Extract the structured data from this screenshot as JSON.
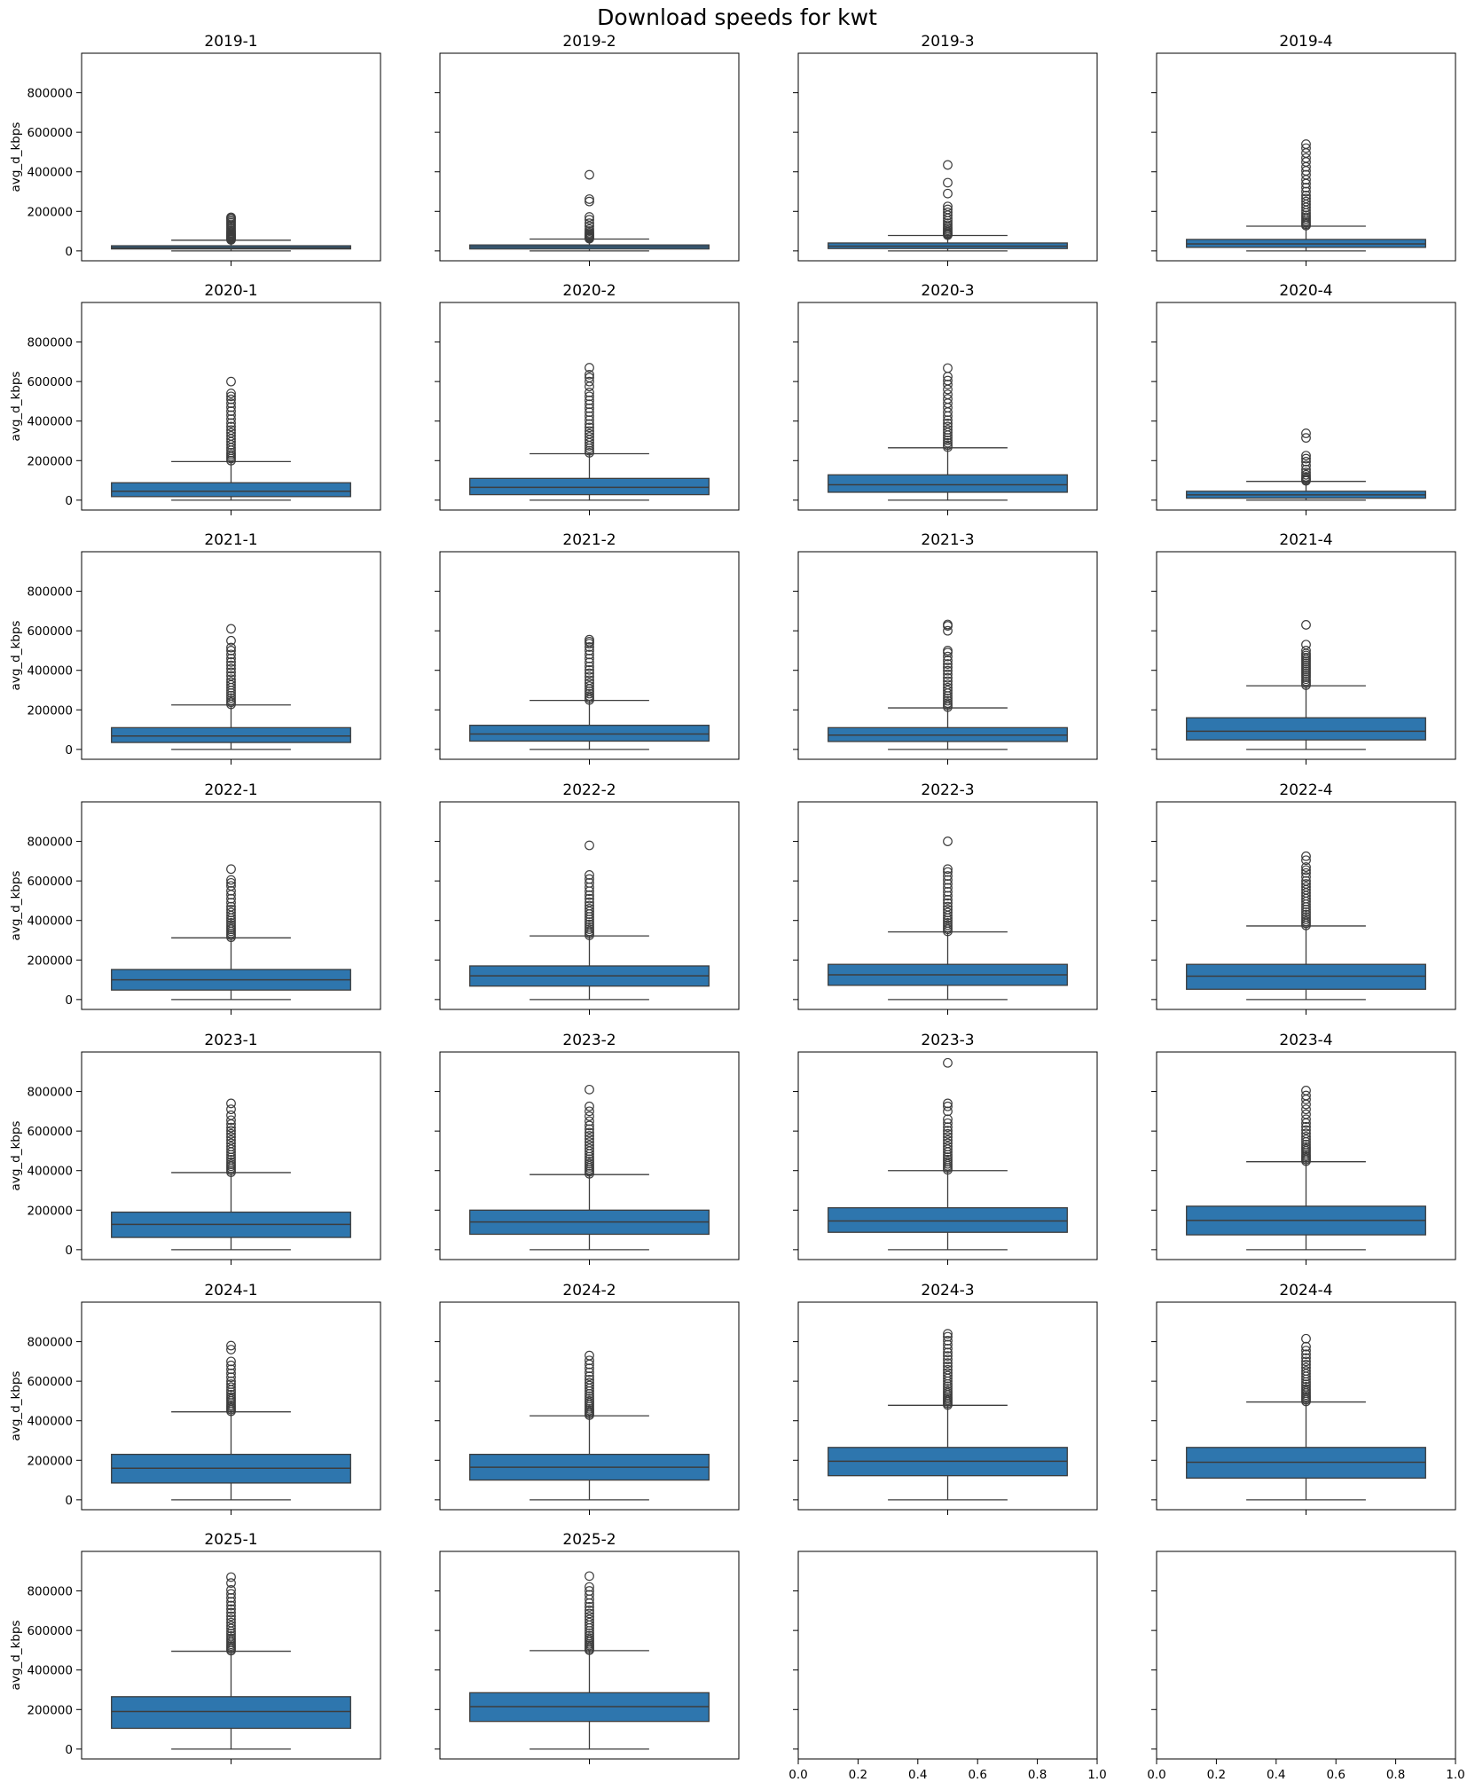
{
  "chart_data": {
    "type": "box",
    "title": "Download speeds for kwt",
    "ylabel": "avg_d_kbps",
    "ylim": [
      -50000,
      1000000
    ],
    "yticks": [
      0,
      200000,
      400000,
      600000,
      800000
    ],
    "ytick_labels": [
      "0",
      "200000",
      "400000",
      "600000",
      "800000"
    ],
    "empty_xticks": [
      0.0,
      0.2,
      0.4,
      0.6,
      0.8,
      1.0
    ],
    "empty_xtick_labels": [
      "0.0",
      "0.2",
      "0.4",
      "0.6",
      "0.8",
      "1.0"
    ],
    "colors": {
      "box": "#2e76ae",
      "line": "#3d3d3d",
      "axis": "#000000"
    },
    "panels": [
      {
        "title": "2019-1",
        "q1": 10000,
        "median": 17000,
        "q3": 26000,
        "whisker_low": 0,
        "whisker_high": 54000,
        "outliers": [
          56000,
          60000,
          64000,
          68000,
          72000,
          76000,
          80000,
          85000,
          90000,
          96000,
          102000,
          110000,
          118000,
          126000,
          134000,
          142000,
          150000,
          158000,
          165000,
          170000
        ]
      },
      {
        "title": "2019-2",
        "q1": 10000,
        "median": 20000,
        "q3": 30000,
        "whisker_low": 0,
        "whisker_high": 60000,
        "outliers": [
          62000,
          66000,
          70000,
          75000,
          80000,
          86000,
          92000,
          100000,
          110000,
          125000,
          140000,
          158000,
          172000,
          250000,
          262000,
          385000
        ]
      },
      {
        "title": "2019-3",
        "q1": 12000,
        "median": 24000,
        "q3": 40000,
        "whisker_low": 0,
        "whisker_high": 78000,
        "outliers": [
          80000,
          85000,
          90000,
          96000,
          104000,
          112000,
          120000,
          130000,
          140000,
          152000,
          165000,
          180000,
          195000,
          210000,
          225000,
          290000,
          345000,
          435000
        ]
      },
      {
        "title": "2019-4",
        "q1": 18000,
        "median": 35000,
        "q3": 58000,
        "whisker_low": 0,
        "whisker_high": 125000,
        "outliers": [
          128000,
          135000,
          142000,
          150000,
          160000,
          170000,
          180000,
          192000,
          205000,
          220000,
          235000,
          250000,
          265000,
          280000,
          300000,
          320000,
          340000,
          360000,
          385000,
          405000,
          425000,
          450000,
          470000,
          495000,
          520000,
          540000
        ]
      },
      {
        "title": "2020-1",
        "q1": 18000,
        "median": 45000,
        "q3": 88000,
        "whisker_low": 0,
        "whisker_high": 195000,
        "outliers": [
          200000,
          210000,
          220000,
          230000,
          240000,
          252000,
          265000,
          280000,
          295000,
          310000,
          325000,
          340000,
          355000,
          372000,
          390000,
          410000,
          430000,
          450000,
          470000,
          490000,
          510000,
          525000,
          540000,
          600000
        ]
      },
      {
        "title": "2020-2",
        "q1": 28000,
        "median": 65000,
        "q3": 110000,
        "whisker_low": 0,
        "whisker_high": 235000,
        "outliers": [
          240000,
          250000,
          262000,
          275000,
          290000,
          305000,
          320000,
          335000,
          350000,
          368000,
          385000,
          405000,
          425000,
          445000,
          465000,
          485000,
          505000,
          525000,
          545000,
          575000,
          600000,
          620000,
          635000,
          670000
        ]
      },
      {
        "title": "2020-3",
        "q1": 40000,
        "median": 78000,
        "q3": 128000,
        "whisker_low": 0,
        "whisker_high": 265000,
        "outliers": [
          268000,
          278000,
          290000,
          302000,
          315000,
          328000,
          342000,
          356000,
          372000,
          388000,
          405000,
          425000,
          445000,
          468000,
          490000,
          512000,
          535000,
          560000,
          585000,
          605000,
          625000,
          668000
        ]
      },
      {
        "title": "2020-4",
        "q1": 10000,
        "median": 27000,
        "q3": 45000,
        "whisker_low": 0,
        "whisker_high": 95000,
        "outliers": [
          98000,
          104000,
          110000,
          118000,
          128000,
          140000,
          155000,
          175000,
          195000,
          210000,
          225000,
          315000,
          338000
        ]
      },
      {
        "title": "2021-1",
        "q1": 35000,
        "median": 68000,
        "q3": 110000,
        "whisker_low": 0,
        "whisker_high": 225000,
        "outliers": [
          228000,
          238000,
          248000,
          260000,
          272000,
          285000,
          298000,
          312000,
          326000,
          340000,
          355000,
          372000,
          390000,
          408000,
          425000,
          442000,
          460000,
          480000,
          500000,
          515000,
          550000,
          610000
        ]
      },
      {
        "title": "2021-2",
        "q1": 42000,
        "median": 78000,
        "q3": 122000,
        "whisker_low": 0,
        "whisker_high": 248000,
        "outliers": [
          250000,
          260000,
          270000,
          282000,
          294000,
          306000,
          320000,
          335000,
          350000,
          368000,
          385000,
          402000,
          420000,
          440000,
          460000,
          480000,
          500000,
          518000,
          535000,
          545000,
          555000
        ]
      },
      {
        "title": "2021-3",
        "q1": 40000,
        "median": 72000,
        "q3": 110000,
        "whisker_low": 0,
        "whisker_high": 210000,
        "outliers": [
          214000,
          224000,
          234000,
          246000,
          258000,
          270000,
          284000,
          298000,
          312000,
          328000,
          345000,
          362000,
          380000,
          398000,
          415000,
          432000,
          450000,
          470000,
          490000,
          500000,
          600000,
          625000,
          632000
        ]
      },
      {
        "title": "2021-4",
        "q1": 48000,
        "median": 92000,
        "q3": 160000,
        "whisker_low": 0,
        "whisker_high": 322000,
        "outliers": [
          325000,
          335000,
          345000,
          355000,
          365000,
          375000,
          385000,
          395000,
          405000,
          415000,
          425000,
          435000,
          445000,
          455000,
          465000,
          475000,
          485000,
          500000,
          530000,
          630000
        ]
      },
      {
        "title": "2022-1",
        "q1": 48000,
        "median": 100000,
        "q3": 152000,
        "whisker_low": 0,
        "whisker_high": 312000,
        "outliers": [
          315000,
          325000,
          335000,
          345000,
          355000,
          365000,
          376000,
          388000,
          400000,
          412000,
          425000,
          440000,
          455000,
          470000,
          490000,
          510000,
          530000,
          550000,
          575000,
          590000,
          605000,
          660000
        ]
      },
      {
        "title": "2022-2",
        "q1": 68000,
        "median": 120000,
        "q3": 170000,
        "whisker_low": 0,
        "whisker_high": 322000,
        "outliers": [
          325000,
          335000,
          345000,
          356000,
          368000,
          380000,
          392000,
          405000,
          418000,
          432000,
          446000,
          460000,
          475000,
          492000,
          510000,
          528000,
          548000,
          568000,
          590000,
          610000,
          630000,
          780000
        ]
      },
      {
        "title": "2022-3",
        "q1": 72000,
        "median": 125000,
        "q3": 178000,
        "whisker_low": 0,
        "whisker_high": 342000,
        "outliers": [
          345000,
          355000,
          365000,
          376000,
          388000,
          400000,
          412000,
          425000,
          440000,
          455000,
          470000,
          488000,
          505000,
          525000,
          545000,
          565000,
          585000,
          605000,
          625000,
          645000,
          660000,
          800000
        ]
      },
      {
        "title": "2022-4",
        "q1": 52000,
        "median": 118000,
        "q3": 178000,
        "whisker_low": 0,
        "whisker_high": 372000,
        "outliers": [
          375000,
          385000,
          395000,
          406000,
          418000,
          430000,
          442000,
          455000,
          468000,
          482000,
          496000,
          510000,
          525000,
          540000,
          555000,
          570000,
          585000,
          600000,
          620000,
          640000,
          655000,
          670000,
          705000,
          725000
        ]
      },
      {
        "title": "2023-1",
        "q1": 62000,
        "median": 128000,
        "q3": 190000,
        "whisker_low": 0,
        "whisker_high": 390000,
        "outliers": [
          392000,
          402000,
          412000,
          422000,
          432000,
          443000,
          455000,
          467000,
          480000,
          494000,
          508000,
          522000,
          538000,
          554000,
          570000,
          586000,
          602000,
          618000,
          635000,
          655000,
          680000,
          710000,
          740000
        ]
      },
      {
        "title": "2023-2",
        "q1": 78000,
        "median": 140000,
        "q3": 200000,
        "whisker_low": 0,
        "whisker_high": 380000,
        "outliers": [
          384000,
          394000,
          404000,
          414000,
          424000,
          435000,
          446000,
          458000,
          470000,
          484000,
          498000,
          512000,
          528000,
          544000,
          560000,
          576000,
          592000,
          610000,
          628000,
          650000,
          675000,
          700000,
          725000,
          810000
        ]
      },
      {
        "title": "2023-3",
        "q1": 88000,
        "median": 145000,
        "q3": 212000,
        "whisker_low": 0,
        "whisker_high": 400000,
        "outliers": [
          404000,
          414000,
          424000,
          434000,
          445000,
          456000,
          468000,
          480000,
          494000,
          508000,
          522000,
          538000,
          554000,
          570000,
          586000,
          602000,
          620000,
          640000,
          660000,
          700000,
          725000,
          740000,
          945000
        ]
      },
      {
        "title": "2023-4",
        "q1": 75000,
        "median": 148000,
        "q3": 220000,
        "whisker_low": 0,
        "whisker_high": 445000,
        "outliers": [
          448000,
          456000,
          464000,
          472000,
          480000,
          490000,
          500000,
          510000,
          520000,
          532000,
          545000,
          558000,
          572000,
          588000,
          605000,
          622000,
          640000,
          660000,
          685000,
          710000,
          735000,
          760000,
          780000,
          805000
        ]
      },
      {
        "title": "2024-1",
        "q1": 85000,
        "median": 160000,
        "q3": 230000,
        "whisker_low": 0,
        "whisker_high": 445000,
        "outliers": [
          448000,
          456000,
          464000,
          472000,
          480000,
          490000,
          500000,
          510000,
          520000,
          532000,
          544000,
          556000,
          570000,
          585000,
          600000,
          620000,
          640000,
          660000,
          680000,
          700000,
          760000,
          780000
        ]
      },
      {
        "title": "2024-2",
        "q1": 100000,
        "median": 165000,
        "q3": 230000,
        "whisker_low": 0,
        "whisker_high": 425000,
        "outliers": [
          428000,
          436000,
          444000,
          452000,
          460000,
          470000,
          480000,
          490000,
          500000,
          512000,
          524000,
          536000,
          550000,
          564000,
          578000,
          592000,
          608000,
          625000,
          645000,
          665000,
          685000,
          705000,
          730000
        ]
      },
      {
        "title": "2024-3",
        "q1": 122000,
        "median": 195000,
        "q3": 265000,
        "whisker_low": 0,
        "whisker_high": 478000,
        "outliers": [
          480000,
          488000,
          496000,
          504000,
          512000,
          520000,
          530000,
          540000,
          550000,
          562000,
          574000,
          586000,
          600000,
          614000,
          628000,
          642000,
          658000,
          675000,
          692000,
          710000,
          728000,
          745000,
          765000,
          785000,
          805000,
          825000,
          840000
        ]
      },
      {
        "title": "2024-4",
        "q1": 110000,
        "median": 190000,
        "q3": 265000,
        "whisker_low": 0,
        "whisker_high": 495000,
        "outliers": [
          498000,
          506000,
          514000,
          522000,
          530000,
          540000,
          550000,
          560000,
          572000,
          584000,
          596000,
          610000,
          624000,
          638000,
          652000,
          668000,
          684000,
          700000,
          718000,
          736000,
          755000,
          775000,
          815000
        ]
      },
      {
        "title": "2025-1",
        "q1": 105000,
        "median": 190000,
        "q3": 265000,
        "whisker_low": 0,
        "whisker_high": 495000,
        "outliers": [
          498000,
          506000,
          514000,
          522000,
          530000,
          540000,
          550000,
          560000,
          572000,
          584000,
          596000,
          610000,
          624000,
          640000,
          656000,
          672000,
          690000,
          708000,
          726000,
          745000,
          765000,
          785000,
          805000,
          840000,
          870000
        ]
      },
      {
        "title": "2025-2",
        "q1": 140000,
        "median": 215000,
        "q3": 285000,
        "whisker_low": 0,
        "whisker_high": 498000,
        "outliers": [
          500000,
          508000,
          516000,
          524000,
          532000,
          542000,
          552000,
          562000,
          574000,
          586000,
          598000,
          612000,
          626000,
          640000,
          655000,
          670000,
          686000,
          702000,
          720000,
          738000,
          758000,
          780000,
          800000,
          820000,
          875000
        ]
      },
      {
        "title": "",
        "empty": true
      },
      {
        "title": "",
        "empty": true
      }
    ]
  }
}
